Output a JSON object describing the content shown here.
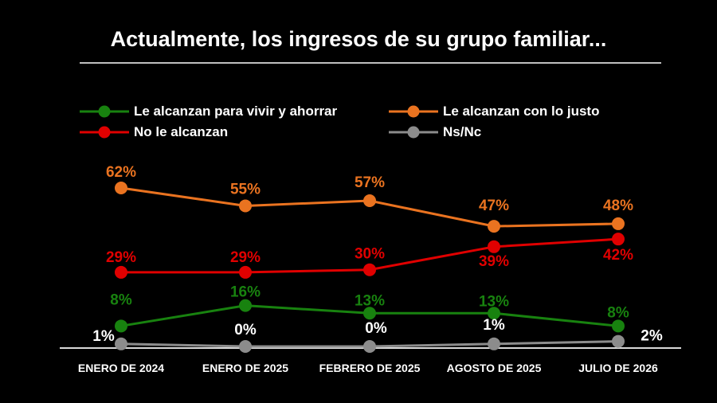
{
  "title": "Actualmente, los ingresos de su grupo familiar...",
  "legend": [
    {
      "label": "Le alcanzan para vivir y ahorrar",
      "color": "#18820f"
    },
    {
      "label": "Le alcanzan con lo justo",
      "color": "#ea7320"
    },
    {
      "label": "No le alcanzan",
      "color": "#e00000"
    },
    {
      "label": "Ns/Nc",
      "color": "#8c8c8c"
    }
  ],
  "chart_data": {
    "type": "line",
    "title": "Actualmente, los ingresos de su grupo familiar...",
    "categories": [
      "ENERO DE 2024",
      "ENERO DE 2025",
      "FEBRERO DE 2025",
      "AGOSTO DE 2025",
      "JULIO DE 2026"
    ],
    "series": [
      {
        "name": "Le alcanzan para vivir y ahorrar",
        "color": "#18820f",
        "values": [
          8,
          16,
          13,
          13,
          8
        ],
        "labels": [
          "8%",
          "16%",
          "13%",
          "13%",
          "8%"
        ]
      },
      {
        "name": "Le alcanzan con lo justo",
        "color": "#ea7320",
        "values": [
          62,
          55,
          57,
          47,
          48
        ],
        "labels": [
          "62%",
          "55%",
          "57%",
          "47%",
          "48%"
        ]
      },
      {
        "name": "No le alcanzan",
        "color": "#e00000",
        "values": [
          29,
          29,
          30,
          39,
          42
        ],
        "labels": [
          "29%",
          "29%",
          "30%",
          "39%",
          "42%"
        ]
      },
      {
        "name": "Ns/Nc",
        "color": "#8c8c8c",
        "values": [
          1,
          0,
          0,
          1,
          2
        ],
        "labels": [
          "1%",
          "0%",
          "0%",
          "1%",
          "2%"
        ]
      }
    ],
    "ylim": [
      0,
      70
    ],
    "grid": false,
    "legend_position": "top"
  }
}
